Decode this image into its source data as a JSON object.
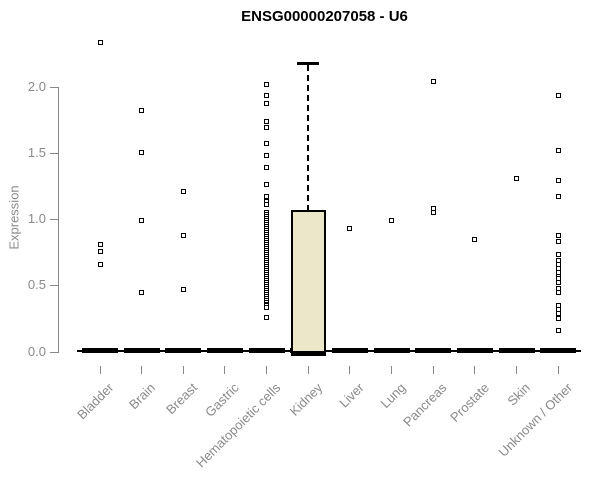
{
  "chart_data": {
    "type": "boxplot",
    "title": "ENSG00000207058 - U6",
    "ylabel": "Expression",
    "xlabel": "",
    "yticks": [
      "0.0",
      "0.5",
      "1.0",
      "1.5",
      "2.0"
    ],
    "ylim": [
      0,
      2.4
    ],
    "grid": false,
    "legend": "none",
    "marker": "open-square",
    "colors": {
      "box_fill": "#ECE7C9",
      "box_border": "#000000",
      "axis": "#888888",
      "labels": "#8a8a8a",
      "title": "#000000"
    },
    "categories": [
      "Bladder",
      "Brain",
      "Breast",
      "Gastric",
      "Hematopoietic cells",
      "Kidney",
      "Liver",
      "Lung",
      "Pancreas",
      "Prostate",
      "Skin",
      "Unknown / Other"
    ],
    "series": [
      {
        "label": "Bladder",
        "box": {
          "median": 0,
          "q1": 0,
          "q3": 0
        },
        "points": [
          2.33,
          0.81,
          0.76,
          0.66
        ]
      },
      {
        "label": "Brain",
        "box": {
          "median": 0,
          "q1": 0,
          "q3": 0
        },
        "points": [
          1.82,
          1.5,
          0.99,
          0.45
        ]
      },
      {
        "label": "Breast",
        "box": {
          "median": 0,
          "q1": 0,
          "q3": 0
        },
        "points": [
          1.21,
          0.88,
          0.47
        ]
      },
      {
        "label": "Gastric",
        "box": {
          "median": 0,
          "q1": 0,
          "q3": 0
        },
        "points": []
      },
      {
        "label": "Hematopoietic cells",
        "box": {
          "median": 0,
          "q1": 0,
          "q3": 0
        },
        "points": [
          2.02,
          1.93,
          1.87,
          1.74,
          1.69,
          1.57,
          1.48,
          1.39,
          1.26,
          1.17,
          1.13,
          1.11,
          1.05,
          1.035,
          1.02,
          1.005,
          0.99,
          0.975,
          0.96,
          0.945,
          0.93,
          0.915,
          0.9,
          0.885,
          0.87,
          0.855,
          0.84,
          0.825,
          0.81,
          0.795,
          0.78,
          0.765,
          0.75,
          0.735,
          0.72,
          0.705,
          0.69,
          0.675,
          0.66,
          0.645,
          0.63,
          0.615,
          0.6,
          0.585,
          0.57,
          0.555,
          0.54,
          0.525,
          0.51,
          0.495,
          0.48,
          0.465,
          0.45,
          0.435,
          0.42,
          0.405,
          0.39,
          0.375,
          0.36,
          0.345,
          0.33,
          0.26
        ]
      },
      {
        "label": "Kidney",
        "box": {
          "median": 0,
          "q1": 0,
          "q3": 1.06,
          "whisker_high": 2.18,
          "whisker_low": 0
        },
        "points": []
      },
      {
        "label": "Liver",
        "box": {
          "median": 0,
          "q1": 0,
          "q3": 0
        },
        "points": [
          0.93
        ]
      },
      {
        "label": "Lung",
        "box": {
          "median": 0,
          "q1": 0,
          "q3": 0
        },
        "points": [
          0.99
        ]
      },
      {
        "label": "Pancreas",
        "box": {
          "median": 0,
          "q1": 0,
          "q3": 0
        },
        "points": [
          2.04,
          1.08,
          1.05
        ]
      },
      {
        "label": "Prostate",
        "box": {
          "median": 0,
          "q1": 0,
          "q3": 0
        },
        "points": [
          0.85
        ]
      },
      {
        "label": "Skin",
        "box": {
          "median": 0,
          "q1": 0,
          "q3": 0
        },
        "points": [
          1.31
        ]
      },
      {
        "label": "Unknown / Other",
        "box": {
          "median": 0,
          "q1": 0,
          "q3": 0
        },
        "points": [
          1.93,
          1.52,
          1.29,
          1.17,
          0.88,
          0.83,
          0.73,
          0.69,
          0.66,
          0.63,
          0.6,
          0.57,
          0.55,
          0.52,
          0.48,
          0.45,
          0.35,
          0.32,
          0.29,
          0.25,
          0.16
        ]
      }
    ]
  }
}
